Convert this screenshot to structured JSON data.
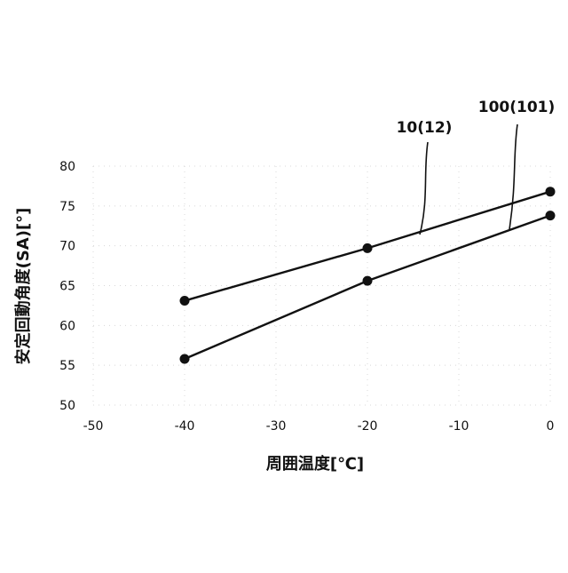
{
  "chart_data": {
    "type": "line",
    "xlabel": "周囲温度[℃]",
    "ylabel": "安定回動角度(SA)[°]",
    "xlim": [
      -50,
      0
    ],
    "ylim": [
      50,
      80
    ],
    "x_ticks": [
      "-50",
      "-40",
      "-30",
      "-20",
      "-10",
      "0"
    ],
    "y_ticks": [
      "50",
      "55",
      "60",
      "65",
      "70",
      "75",
      "80"
    ],
    "grid": "dotted-faint",
    "series": [
      {
        "name": "10(12)",
        "x": [
          -40,
          -20,
          0
        ],
        "y": [
          63.1,
          69.7,
          76.8
        ]
      },
      {
        "name": "100(101)",
        "x": [
          -40,
          -20,
          0
        ],
        "y": [
          55.8,
          65.6,
          73.8
        ]
      }
    ]
  }
}
